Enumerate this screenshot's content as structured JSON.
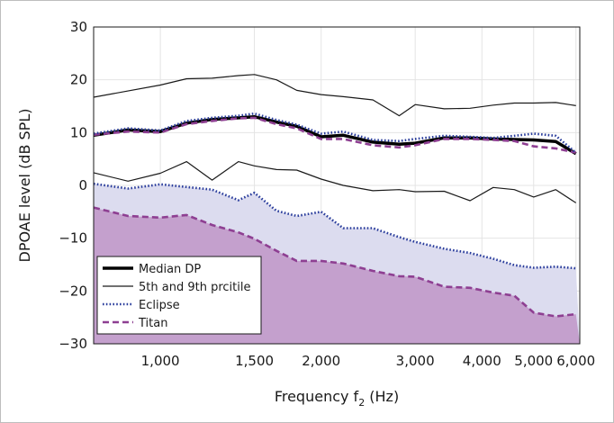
{
  "chart_data": {
    "type": "line",
    "title": "",
    "xlabel": {
      "prefix": "Frequency f",
      "sub": "2",
      "suffix": " (Hz)"
    },
    "ylabel": "DPOAE level (dB SPL)",
    "x_scale": "log",
    "xlim": [
      750,
      6100
    ],
    "ylim": [
      -30,
      30
    ],
    "x_ticks": [
      1000,
      1500,
      2000,
      3000,
      4000,
      5000,
      6000
    ],
    "x_tick_labels": [
      "1,000",
      "1,500",
      "2,000",
      "3,000",
      "4,000",
      "5,000",
      "6,000"
    ],
    "y_ticks": [
      -30,
      -20,
      -10,
      0,
      10,
      20,
      30
    ],
    "y_tick_labels": [
      "−30",
      "−20",
      "−10",
      "0",
      "10",
      "20",
      "30"
    ],
    "grid": true,
    "legend_position": "bottom-left",
    "colors": {
      "median": "#000000",
      "percentile": "#1a1a1a",
      "eclipse": "#2a3d9c",
      "titan": "#8e3f92",
      "eclipse_fill": "#dcdcef",
      "titan_fill": "#c4a0cd"
    },
    "series": [
      {
        "name": "Median DP",
        "style": "thick-solid",
        "x": [
          750,
          870,
          1000,
          1120,
          1250,
          1400,
          1500,
          1650,
          1800,
          2000,
          2200,
          2500,
          2800,
          3000,
          3400,
          3800,
          4200,
          4600,
          5000,
          5500,
          6000
        ],
        "y": [
          9.5,
          10.5,
          10.2,
          11.8,
          12.5,
          12.8,
          13.0,
          12.0,
          11.2,
          9.2,
          9.5,
          8.2,
          7.8,
          8.0,
          9.0,
          9.0,
          8.8,
          8.7,
          8.6,
          8.3,
          6.0
        ]
      },
      {
        "name": "5th and 9th prcitile",
        "style": "thin-solid",
        "x": [
          750,
          1000,
          1120,
          1250,
          1400,
          1500,
          1650,
          1800,
          2000,
          2200,
          2500,
          2800,
          3000,
          3400,
          3800,
          4200,
          4600,
          5000,
          5500,
          6000
        ],
        "y": [
          16.7,
          19.0,
          20.2,
          20.3,
          20.8,
          21.0,
          20.0,
          18.0,
          17.2,
          16.8,
          16.2,
          13.2,
          15.3,
          14.5,
          14.6,
          15.2,
          15.6,
          15.6,
          15.7,
          15.1
        ]
      },
      {
        "name": "5th and 9th prcitile",
        "style": "thin-solid",
        "show_in_legend": false,
        "x": [
          750,
          870,
          1000,
          1120,
          1250,
          1400,
          1500,
          1650,
          1800,
          2000,
          2200,
          2500,
          2800,
          3000,
          3400,
          3800,
          4200,
          4600,
          5000,
          5500,
          6000
        ],
        "y": [
          2.4,
          0.8,
          2.3,
          4.5,
          1.0,
          4.5,
          3.7,
          3.0,
          2.9,
          1.2,
          0.0,
          -1.0,
          -0.8,
          -1.2,
          -1.1,
          -2.9,
          -0.4,
          -0.8,
          -2.2,
          -0.8,
          -3.3
        ]
      },
      {
        "name": "Eclipse",
        "style": "dotted",
        "x": [
          750,
          870,
          1000,
          1120,
          1250,
          1400,
          1500,
          1650,
          1800,
          2000,
          2200,
          2500,
          2800,
          3000,
          3400,
          3800,
          4200,
          4600,
          5000,
          5500,
          6000
        ],
        "y": [
          9.8,
          10.8,
          10.4,
          12.2,
          12.8,
          13.2,
          13.6,
          12.4,
          11.5,
          9.8,
          10.2,
          8.6,
          8.4,
          8.8,
          9.4,
          9.2,
          9.0,
          9.4,
          9.8,
          9.4,
          6.2
        ]
      },
      {
        "name": "Eclipse",
        "style": "dotted",
        "show_in_legend": false,
        "x": [
          750,
          870,
          1000,
          1120,
          1250,
          1400,
          1500,
          1650,
          1800,
          2000,
          2200,
          2500,
          2800,
          3000,
          3400,
          3800,
          4200,
          4600,
          5000,
          5500,
          6000
        ],
        "y": [
          0.3,
          -0.6,
          0.2,
          -0.3,
          -0.8,
          -2.8,
          -1.4,
          -4.8,
          -5.8,
          -5.0,
          -8.1,
          -8.1,
          -9.8,
          -10.7,
          -12.0,
          -12.8,
          -13.9,
          -15.1,
          -15.6,
          -15.4,
          -15.7
        ]
      },
      {
        "name": "Titan",
        "style": "dashed",
        "x": [
          750,
          870,
          1000,
          1120,
          1250,
          1400,
          1500,
          1650,
          1800,
          2000,
          2200,
          2500,
          2800,
          3000,
          3400,
          3800,
          4200,
          4600,
          5000,
          5500,
          6000
        ],
        "y": [
          9.6,
          10.2,
          10.0,
          11.6,
          12.2,
          12.7,
          12.8,
          11.6,
          10.8,
          8.8,
          8.8,
          7.6,
          7.2,
          7.6,
          8.8,
          8.8,
          8.6,
          8.4,
          7.4,
          7.0,
          6.2
        ]
      },
      {
        "name": "Titan",
        "style": "dashed",
        "show_in_legend": false,
        "x": [
          750,
          870,
          1000,
          1120,
          1250,
          1400,
          1500,
          1650,
          1800,
          2000,
          2200,
          2500,
          2800,
          3000,
          3400,
          3800,
          4200,
          4600,
          5000,
          5500,
          6000
        ],
        "y": [
          -4.2,
          -5.8,
          -6.1,
          -5.6,
          -7.5,
          -8.9,
          -10.1,
          -12.4,
          -14.3,
          -14.3,
          -14.8,
          -16.2,
          -17.2,
          -17.3,
          -19.2,
          -19.4,
          -20.3,
          -20.9,
          -24.1,
          -24.8,
          -24.4
        ]
      }
    ]
  }
}
